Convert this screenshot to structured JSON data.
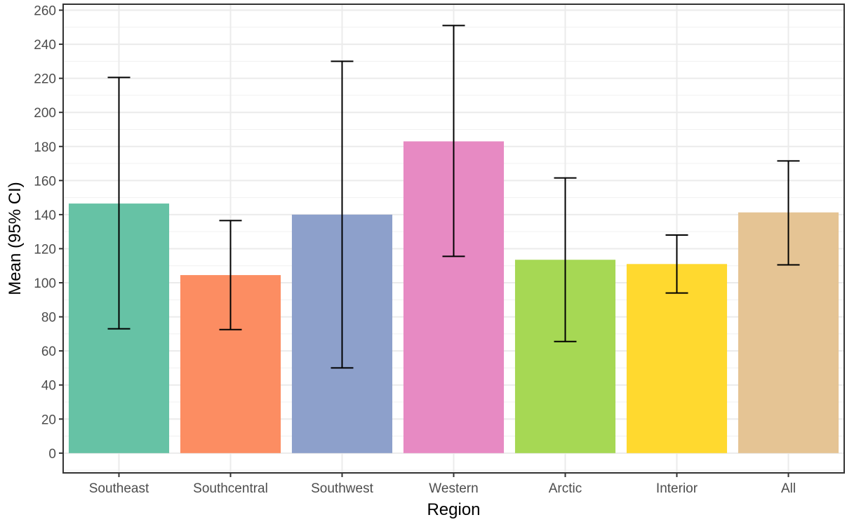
{
  "chart_data": {
    "type": "bar",
    "title": "",
    "xlabel": "Region",
    "ylabel": "Mean (95% CI)",
    "categories": [
      "Southeast",
      "Southcentral",
      "Southwest",
      "Western",
      "Arctic",
      "Interior",
      "All"
    ],
    "values": [
      146.5,
      104.5,
      140,
      183,
      113.5,
      111,
      141.3
    ],
    "ci_lower": [
      73,
      72.5,
      50,
      115.5,
      65.5,
      94,
      110.5
    ],
    "ci_upper": [
      220.5,
      136.5,
      230,
      251,
      161.5,
      128,
      171.5
    ],
    "colors": [
      "#66c2a5",
      "#fc8d62",
      "#8da0cb",
      "#e78ac3",
      "#a6d854",
      "#ffd92f",
      "#e5c494"
    ],
    "ylim": [
      -11.6,
      263.5
    ],
    "yticks": [
      0,
      20,
      40,
      60,
      80,
      100,
      120,
      140,
      160,
      180,
      200,
      220,
      240,
      260
    ],
    "grid": true,
    "legend": "none"
  }
}
